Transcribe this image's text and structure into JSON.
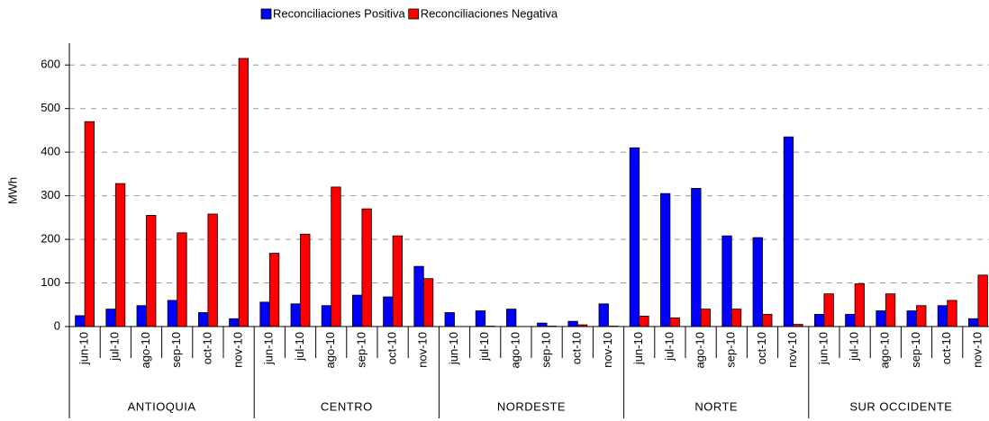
{
  "chart_data": {
    "type": "bar",
    "y_label": "MWh",
    "categories": [
      "jun-10",
      "jul-10",
      "ago-10",
      "sep-10",
      "oct-10",
      "nov-10",
      "jun-10",
      "jul-10",
      "ago-10",
      "sep-10",
      "oct-10",
      "nov-10",
      "jun-10",
      "jul-10",
      "ago-10",
      "sep-10",
      "oct-10",
      "nov-10",
      "jun-10",
      "jul-10",
      "ago-10",
      "sep-10",
      "oct-10",
      "nov-10",
      "jun-10",
      "jul-10",
      "ago-10",
      "sep-10",
      "oct-10",
      "nov-10"
    ],
    "groups": [
      "ANTIOQUIA",
      "CENTRO",
      "NORDESTE",
      "NORTE",
      "SUR OCCIDENTE"
    ],
    "series": [
      {
        "name": "Reconciliaciones Positiva",
        "color": "#0000ff",
        "values": [
          25,
          40,
          48,
          60,
          32,
          18,
          56,
          52,
          48,
          72,
          68,
          138,
          32,
          36,
          40,
          8,
          12,
          52,
          410,
          305,
          317,
          208,
          204,
          435,
          28,
          28,
          36,
          36,
          48,
          18
        ]
      },
      {
        "name": "Reconciliaciones Negativa",
        "color": "#ff0000",
        "values": [
          470,
          328,
          255,
          215,
          258,
          615,
          168,
          212,
          320,
          270,
          208,
          110,
          0,
          1,
          0,
          1,
          4,
          1,
          24,
          20,
          40,
          40,
          28,
          5,
          75,
          98,
          75,
          48,
          60,
          118
        ]
      }
    ],
    "ylim": [
      0,
      650
    ],
    "yticks": [
      0,
      100,
      200,
      300,
      400,
      500,
      600
    ],
    "grid": true,
    "legend": "top"
  }
}
